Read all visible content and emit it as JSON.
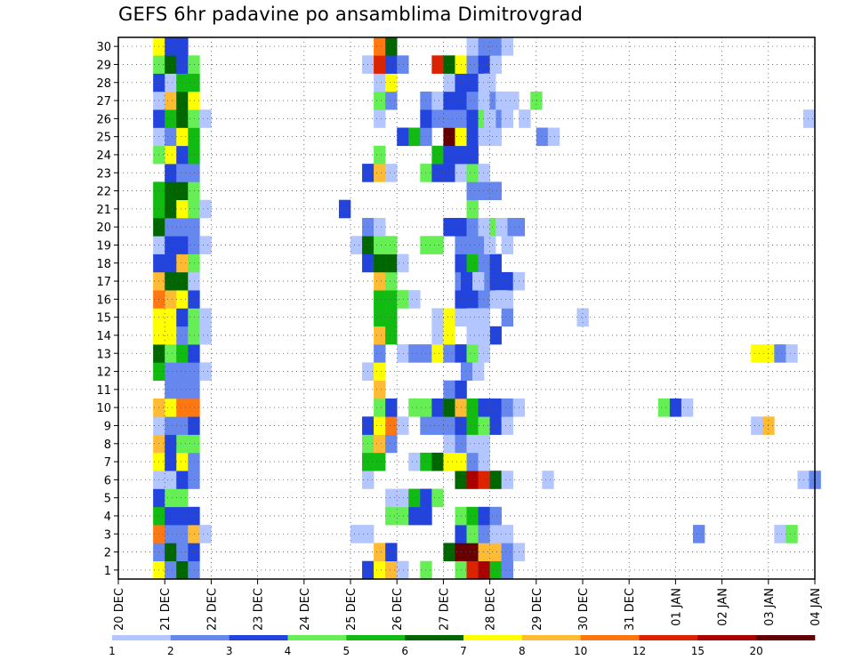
{
  "chart_data": {
    "type": "heatmap",
    "title": "GEFS 6hr padavine po ansamblima Dimitrovgrad",
    "xlabel": "",
    "ylabel": "",
    "y_members": [
      1,
      2,
      3,
      4,
      5,
      6,
      7,
      8,
      9,
      10,
      11,
      12,
      13,
      14,
      15,
      16,
      17,
      18,
      19,
      20,
      21,
      22,
      23,
      24,
      25,
      26,
      27,
      28,
      29,
      30
    ],
    "x_ticks": [
      "20 DEC",
      "21 DEC",
      "22 DEC",
      "23 DEC",
      "24 DEC",
      "25 DEC",
      "26 DEC",
      "27 DEC",
      "28 DEC",
      "29 DEC",
      "30 DEC",
      "31 DEC",
      "01 JAN",
      "02 JAN",
      "03 JAN",
      "04 JAN"
    ],
    "x_range_days": [
      0,
      15
    ],
    "grid": true,
    "legend": {
      "position": "bottom",
      "labels": [
        "1",
        "2",
        "3",
        "4",
        "5",
        "6",
        "7",
        "8",
        "10",
        "12",
        "15",
        "20"
      ],
      "colors": [
        "#b3c6ff",
        "#6688ee",
        "#2244dd",
        "#66ee55",
        "#11bb11",
        "#006600",
        "#ffff00",
        "#ffbb33",
        "#ff7711",
        "#dd2200",
        "#aa0000",
        "#660000"
      ]
    },
    "cell_days": 0.25,
    "note_levels": "level index 0..12 : 0=white(<1mm), 1=1-2, 2=2-3, 3=3-4, 4=4-5, 5=5-6, 6=6-7, 7=7-8, 8=8-10, 9=10-12, 10=12-15, 11=15-20, 12=>20",
    "members": [
      {
        "m": 1,
        "t0": 0.875,
        "levels": [
          7,
          2,
          6,
          2,
          0,
          0,
          0,
          0,
          0,
          0,
          0,
          0,
          0,
          0,
          0,
          0,
          0,
          0,
          3,
          7,
          8,
          1,
          0,
          4,
          0,
          0,
          4,
          10,
          11,
          5,
          2
        ]
      },
      {
        "m": 2,
        "t0": 0.875,
        "levels": [
          2,
          6,
          2,
          3,
          0,
          0,
          0,
          0,
          0,
          0,
          0,
          0,
          0,
          0,
          0,
          0,
          0,
          0,
          0,
          8,
          3,
          0,
          0,
          0,
          0,
          6,
          12,
          12,
          8,
          8,
          2,
          1
        ]
      },
      {
        "m": 3,
        "t0": 0.875,
        "levels": [
          9,
          2,
          2,
          8,
          1,
          0,
          0,
          0,
          0,
          0,
          0,
          0,
          0,
          0,
          0,
          0,
          0,
          1,
          1,
          0,
          0,
          0,
          0,
          0,
          0,
          0,
          3,
          4,
          2,
          1,
          1
        ]
      },
      {
        "m": 4,
        "t0": 0.875,
        "levels": [
          5,
          3,
          3,
          3,
          0,
          0,
          0,
          0,
          0,
          0,
          0,
          0,
          0,
          0,
          0,
          0,
          0,
          0,
          0,
          0,
          4,
          4,
          3,
          3,
          0,
          0,
          4,
          5,
          3,
          2
        ]
      },
      {
        "m": 5,
        "t0": 0.875,
        "levels": [
          3,
          4,
          4,
          0,
          0,
          0,
          0,
          0,
          0,
          0,
          0,
          0,
          0,
          0,
          0,
          0,
          0,
          0,
          0,
          0,
          1,
          1,
          5,
          3,
          4,
          0
        ]
      },
      {
        "m": 6,
        "t0": 0.875,
        "levels": [
          1,
          1,
          3,
          2,
          0,
          0,
          0,
          0,
          0,
          0,
          0,
          0,
          0,
          0,
          0,
          0,
          0,
          0,
          1,
          0,
          0,
          0,
          0,
          0,
          0,
          0,
          6,
          11,
          10,
          6,
          1
        ]
      },
      {
        "m": 7,
        "t0": 0.875,
        "levels": [
          7,
          3,
          7,
          2,
          0,
          0,
          0,
          0,
          0,
          0,
          0,
          0,
          0,
          0,
          0,
          0,
          0,
          0,
          5,
          5,
          0,
          0,
          1,
          5,
          6,
          7,
          7,
          2,
          1
        ]
      },
      {
        "m": 8,
        "t0": 0.875,
        "levels": [
          8,
          3,
          4,
          4,
          0,
          0,
          0,
          0,
          0,
          0,
          0,
          0,
          0,
          0,
          0,
          0,
          0,
          0,
          4,
          8,
          2,
          0,
          0,
          0,
          0,
          1,
          2,
          1,
          1
        ]
      },
      {
        "m": 9,
        "t0": 0.875,
        "levels": [
          1,
          2,
          2,
          3,
          0,
          0,
          0,
          0,
          0,
          0,
          0,
          0,
          0,
          0,
          0,
          0,
          0,
          0,
          3,
          7,
          9,
          1,
          0,
          2,
          2,
          2,
          3,
          5,
          4,
          3,
          1
        ]
      },
      {
        "m": 10,
        "t0": 0.875,
        "levels": [
          8,
          7,
          9,
          9,
          0,
          0,
          0,
          0,
          0,
          0,
          0,
          0,
          0,
          0,
          0,
          0,
          0,
          0,
          0,
          4,
          3,
          0,
          4,
          4,
          3,
          6,
          8,
          5,
          3,
          3,
          2,
          1
        ]
      },
      {
        "m": 11,
        "t0": 0.875,
        "levels": [
          0,
          2,
          2,
          2,
          0,
          0,
          0,
          0,
          0,
          0,
          0,
          0,
          0,
          0,
          0,
          0,
          0,
          0,
          0,
          8,
          0,
          0,
          0,
          0,
          0,
          2,
          3
        ]
      },
      {
        "m": 12,
        "t0": 0.875,
        "levels": [
          5,
          2,
          2,
          2,
          1,
          0,
          0,
          0,
          0,
          0,
          0,
          0,
          0,
          0,
          0,
          0,
          0,
          0,
          1,
          7
        ]
      },
      {
        "m": 13,
        "t0": 0.875,
        "levels": [
          6,
          4,
          5,
          3,
          0,
          0,
          0,
          0,
          0,
          0,
          0,
          0,
          0,
          0,
          0,
          0,
          0,
          0,
          0,
          2,
          0,
          1,
          2,
          2,
          7,
          2,
          3,
          4,
          1
        ]
      },
      {
        "m": 14,
        "t0": 0.875,
        "levels": [
          7,
          7,
          2,
          4,
          1,
          0,
          0,
          0,
          0,
          0,
          0,
          0,
          0,
          0,
          0,
          0,
          0,
          0,
          0,
          8,
          5,
          0,
          0,
          0,
          1,
          7,
          0,
          0,
          0,
          3
        ]
      },
      {
        "m": 15,
        "t0": 0.875,
        "levels": [
          7,
          7,
          3,
          4,
          1,
          0,
          0,
          0,
          0,
          0,
          0,
          0,
          0,
          0,
          0,
          0,
          0,
          0,
          0,
          5,
          5,
          0,
          0,
          0,
          1,
          7,
          1,
          0,
          0,
          0,
          2
        ]
      },
      {
        "m": 16,
        "t0": 0.875,
        "levels": [
          9,
          8,
          7,
          3,
          0,
          0,
          0,
          0,
          0,
          0,
          0,
          0,
          0,
          0,
          0,
          0,
          0,
          0,
          0,
          5,
          5,
          4,
          1,
          0,
          0,
          0,
          3,
          3,
          2,
          1,
          1
        ]
      },
      {
        "m": 17,
        "t0": 0.875,
        "levels": [
          8,
          6,
          6,
          1,
          0,
          0,
          0,
          0,
          0,
          0,
          0,
          0,
          0,
          0,
          0,
          0,
          0,
          0,
          0,
          8,
          4,
          0,
          0,
          0,
          0,
          0,
          2,
          5,
          2,
          3,
          3,
          1
        ]
      },
      {
        "m": 18,
        "t0": 0.875,
        "levels": [
          3,
          3,
          8,
          4,
          0,
          0,
          0,
          0,
          0,
          0,
          0,
          0,
          0,
          0,
          0,
          0,
          0,
          0,
          3,
          6,
          6,
          1,
          0,
          0,
          0,
          0,
          3,
          5,
          2,
          3
        ]
      },
      {
        "m": 19,
        "t0": 0.875,
        "levels": [
          1,
          3,
          3,
          2,
          1,
          0,
          0,
          0,
          0,
          0,
          0,
          0,
          0,
          0,
          0,
          0,
          0,
          1,
          6,
          4,
          4,
          0,
          0,
          4,
          4,
          0,
          2,
          2,
          2
        ]
      },
      {
        "m": 20,
        "t0": 0.875,
        "levels": [
          6,
          2,
          2,
          2,
          0,
          0,
          0,
          0,
          0,
          0,
          0,
          0,
          0,
          0,
          0,
          0,
          0,
          0,
          2,
          1,
          0,
          0,
          0,
          0,
          0,
          3,
          3,
          2,
          1,
          4,
          2,
          2
        ]
      },
      {
        "m": 21,
        "t0": 0.875,
        "levels": [
          5,
          6,
          7,
          4,
          1,
          0,
          0,
          0,
          0,
          0,
          0,
          0,
          0,
          0,
          0,
          0,
          3,
          0,
          0,
          0,
          0,
          0,
          0,
          0,
          0,
          0,
          0,
          4
        ]
      },
      {
        "m": 22,
        "t0": 0.875,
        "levels": [
          5,
          6,
          6,
          4,
          0,
          0,
          0,
          0,
          0,
          0,
          0,
          0,
          0,
          0,
          0,
          0,
          0,
          0,
          0,
          0,
          0,
          0,
          0,
          0,
          0,
          0,
          0,
          2,
          2,
          2
        ]
      },
      {
        "m": 23,
        "t0": 0.875,
        "levels": [
          0,
          3,
          2,
          2,
          0,
          0,
          0,
          0,
          0,
          0,
          0,
          0,
          0,
          0,
          0,
          0,
          0,
          0,
          3,
          8,
          1,
          0,
          0,
          4,
          3,
          3,
          1,
          4,
          1
        ]
      },
      {
        "m": 24,
        "t0": 0.875,
        "levels": [
          4,
          7,
          3,
          5,
          0,
          0,
          0,
          0,
          0,
          0,
          0,
          0,
          0,
          0,
          0,
          0,
          0,
          0,
          0,
          4,
          0,
          0,
          0,
          0,
          5,
          3,
          3,
          3
        ]
      },
      {
        "m": 25,
        "t0": 0.875,
        "levels": [
          1,
          2,
          7,
          5,
          0,
          0,
          0,
          0,
          0,
          0,
          0,
          0,
          0,
          0,
          0,
          0,
          0,
          0,
          0,
          0,
          0,
          3,
          5,
          2,
          0,
          12,
          7,
          3,
          1,
          1
        ]
      },
      {
        "m": 26,
        "t0": 0.875,
        "levels": [
          3,
          5,
          6,
          4,
          1,
          0,
          0,
          0,
          0,
          0,
          0,
          0,
          0,
          0,
          0,
          0,
          0,
          0,
          0,
          1,
          0,
          0,
          0,
          3,
          2,
          2,
          2,
          3,
          4,
          2,
          1
        ]
      },
      {
        "m": 27,
        "t0": 0.875,
        "levels": [
          1,
          8,
          6,
          7,
          0,
          0,
          0,
          0,
          0,
          0,
          0,
          0,
          0,
          0,
          0,
          0,
          0,
          0,
          0,
          4,
          2,
          0,
          0,
          2,
          1,
          3,
          3,
          2,
          1,
          2
        ]
      },
      {
        "m": 28,
        "t0": 0.875,
        "levels": [
          3,
          1,
          5,
          5,
          0,
          0,
          0,
          0,
          0,
          0,
          0,
          0,
          0,
          0,
          0,
          0,
          0,
          0,
          0,
          1,
          7,
          0,
          0,
          0,
          0,
          1,
          3,
          3,
          1
        ]
      },
      {
        "m": 29,
        "t0": 0.875,
        "levels": [
          4,
          6,
          3,
          4,
          0,
          0,
          0,
          0,
          0,
          0,
          0,
          0,
          0,
          0,
          0,
          0,
          0,
          0,
          1,
          10,
          3,
          2,
          0,
          0,
          10,
          6,
          7,
          2,
          3,
          1
        ]
      },
      {
        "m": 30,
        "t0": 0.875,
        "levels": [
          7,
          3,
          3,
          0,
          0,
          0,
          0,
          0,
          0,
          0,
          0,
          0,
          0,
          0,
          0,
          0,
          0,
          0,
          0,
          9,
          6,
          0,
          0,
          0,
          0,
          0,
          0,
          1,
          2,
          2,
          1
        ]
      }
    ],
    "extra_cells": [
      {
        "m": 27,
        "t": [
          8.25,
          8.5,
          8.75,
          9.0
        ],
        "levels": [
          1,
          1,
          0,
          4
        ]
      },
      {
        "m": 26,
        "t": [
          8.0,
          8.75
        ],
        "levels": [
          1,
          1
        ]
      },
      {
        "m": 28,
        "t": [
          8.0
        ],
        "levels": [
          1
        ]
      },
      {
        "m": 25,
        "t": [
          9.125,
          9.375
        ],
        "levels": [
          2,
          1
        ]
      },
      {
        "m": 26,
        "t": [
          14.875
        ],
        "levels": [
          1
        ]
      },
      {
        "m": 20,
        "t": [
          8.25
        ],
        "levels": [
          1
        ]
      },
      {
        "m": 19,
        "t": [
          8.0,
          8.375
        ],
        "levels": [
          1,
          1
        ]
      },
      {
        "m": 17,
        "t": [
          7.5,
          7.75
        ],
        "levels": [
          3,
          1
        ]
      },
      {
        "m": 16,
        "t": [
          8.25
        ],
        "levels": [
          1
        ]
      },
      {
        "m": 15,
        "t": [
          7.625,
          7.875
        ],
        "levels": [
          1,
          1
        ]
      },
      {
        "m": 15,
        "t": [
          10.0
        ],
        "levels": [
          1
        ]
      },
      {
        "m": 14,
        "t": [
          7.625,
          7.875
        ],
        "levels": [
          1,
          1
        ]
      },
      {
        "m": 13,
        "t": [
          13.75,
          14.0,
          14.25,
          14.5,
          14.75
        ],
        "levels": [
          7,
          7,
          2,
          1,
          0
        ]
      },
      {
        "m": 12,
        "t": [
          7.5,
          7.75
        ],
        "levels": [
          2,
          1
        ]
      },
      {
        "m": 10,
        "t": [
          11.75,
          12.0,
          12.25
        ],
        "levels": [
          4,
          3,
          1
        ]
      },
      {
        "m": 9,
        "t": [
          13.75,
          14.0
        ],
        "levels": [
          1,
          8
        ]
      },
      {
        "m": 6,
        "t": [
          9.25
        ],
        "levels": [
          1
        ]
      },
      {
        "m": 6,
        "t": [
          14.75,
          15.0
        ],
        "levels": [
          1,
          2
        ]
      },
      {
        "m": 3,
        "t": [
          12.5
        ],
        "levels": [
          2
        ]
      },
      {
        "m": 3,
        "t": [
          14.25,
          14.5
        ],
        "levels": [
          1,
          4
        ]
      }
    ]
  }
}
